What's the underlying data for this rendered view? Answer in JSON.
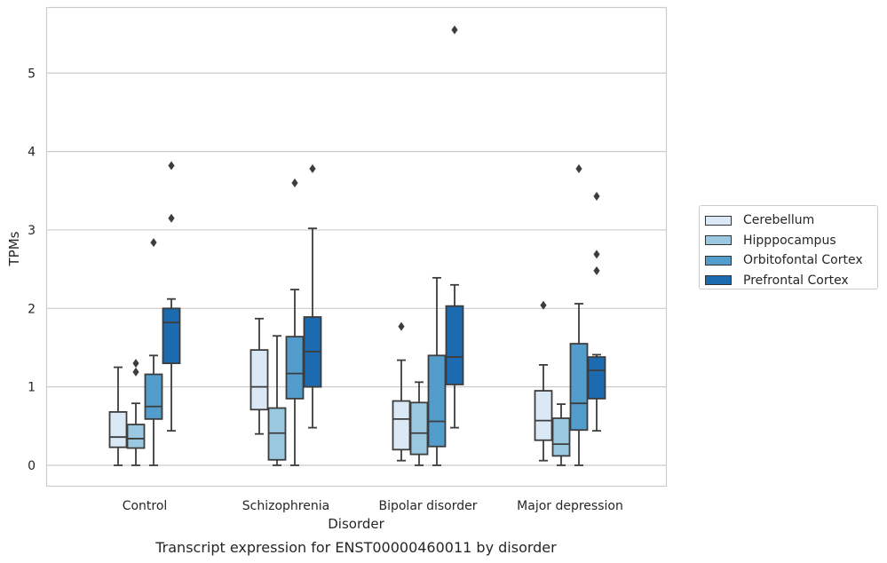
{
  "chart_data": {
    "type": "box",
    "title": "Transcript expression for ENST00000460011 by disorder",
    "xlabel": "Disorder",
    "ylabel": "TPMs",
    "categories": [
      "Control",
      "Schizophrenia",
      "Bipolar disorder",
      "Major depression"
    ],
    "ylim": [
      -0.27,
      5.84
    ],
    "yticks": [
      "0",
      "1",
      "2",
      "3",
      "4",
      "5"
    ],
    "grid": "horizontal",
    "legend_position": "right",
    "series": [
      {
        "name": "Cerebellum",
        "color": "#dbe9f6",
        "boxes": [
          {
            "whisker_low": 0.0,
            "q1": 0.23,
            "median": 0.36,
            "q3": 0.68,
            "whisker_high": 1.25,
            "outliers": []
          },
          {
            "whisker_low": 0.4,
            "q1": 0.71,
            "median": 1.0,
            "q3": 1.47,
            "whisker_high": 1.87,
            "outliers": []
          },
          {
            "whisker_low": 0.06,
            "q1": 0.2,
            "median": 0.59,
            "q3": 0.82,
            "whisker_high": 1.34,
            "outliers": [
              1.77
            ]
          },
          {
            "whisker_low": 0.06,
            "q1": 0.32,
            "median": 0.57,
            "q3": 0.95,
            "whisker_high": 1.28,
            "outliers": [
              2.04
            ]
          }
        ]
      },
      {
        "name": "Hipppocampus",
        "color": "#9ac8e0",
        "boxes": [
          {
            "whisker_low": 0.0,
            "q1": 0.22,
            "median": 0.34,
            "q3": 0.52,
            "whisker_high": 0.79,
            "outliers": [
              1.19,
              1.3
            ]
          },
          {
            "whisker_low": 0.0,
            "q1": 0.07,
            "median": 0.41,
            "q3": 0.73,
            "whisker_high": 1.65,
            "outliers": []
          },
          {
            "whisker_low": 0.0,
            "q1": 0.14,
            "median": 0.41,
            "q3": 0.8,
            "whisker_high": 1.06,
            "outliers": []
          },
          {
            "whisker_low": 0.0,
            "q1": 0.12,
            "median": 0.27,
            "q3": 0.6,
            "whisker_high": 0.78,
            "outliers": []
          }
        ]
      },
      {
        "name": "Orbitofontal Cortex",
        "color": "#529dcc",
        "boxes": [
          {
            "whisker_low": 0.0,
            "q1": 0.59,
            "median": 0.75,
            "q3": 1.16,
            "whisker_high": 1.4,
            "outliers": [
              2.84
            ]
          },
          {
            "whisker_low": 0.0,
            "q1": 0.85,
            "median": 1.17,
            "q3": 1.64,
            "whisker_high": 2.24,
            "outliers": [
              3.6
            ]
          },
          {
            "whisker_low": 0.0,
            "q1": 0.24,
            "median": 0.56,
            "q3": 1.4,
            "whisker_high": 2.39,
            "outliers": []
          },
          {
            "whisker_low": 0.0,
            "q1": 0.45,
            "median": 0.79,
            "q3": 1.55,
            "whisker_high": 2.06,
            "outliers": [
              3.78
            ]
          }
        ]
      },
      {
        "name": "Prefrontal Cortex",
        "color": "#1c6aaf",
        "boxes": [
          {
            "whisker_low": 0.44,
            "q1": 1.3,
            "median": 1.82,
            "q3": 2.0,
            "whisker_high": 2.12,
            "outliers": [
              3.15,
              3.82
            ]
          },
          {
            "whisker_low": 0.48,
            "q1": 1.0,
            "median": 1.45,
            "q3": 1.89,
            "whisker_high": 3.02,
            "outliers": [
              3.78
            ]
          },
          {
            "whisker_low": 0.48,
            "q1": 1.03,
            "median": 1.38,
            "q3": 2.03,
            "whisker_high": 2.3,
            "outliers": [
              5.55
            ]
          },
          {
            "whisker_low": 0.44,
            "q1": 0.85,
            "median": 1.21,
            "q3": 1.38,
            "whisker_high": 1.41,
            "outliers": [
              2.48,
              2.69,
              3.43
            ]
          }
        ]
      }
    ]
  },
  "colors": {
    "grid": "#cccccc",
    "axis_frame": "#cccccc",
    "box_edge": "#3d3d3d",
    "text": "#262626"
  }
}
